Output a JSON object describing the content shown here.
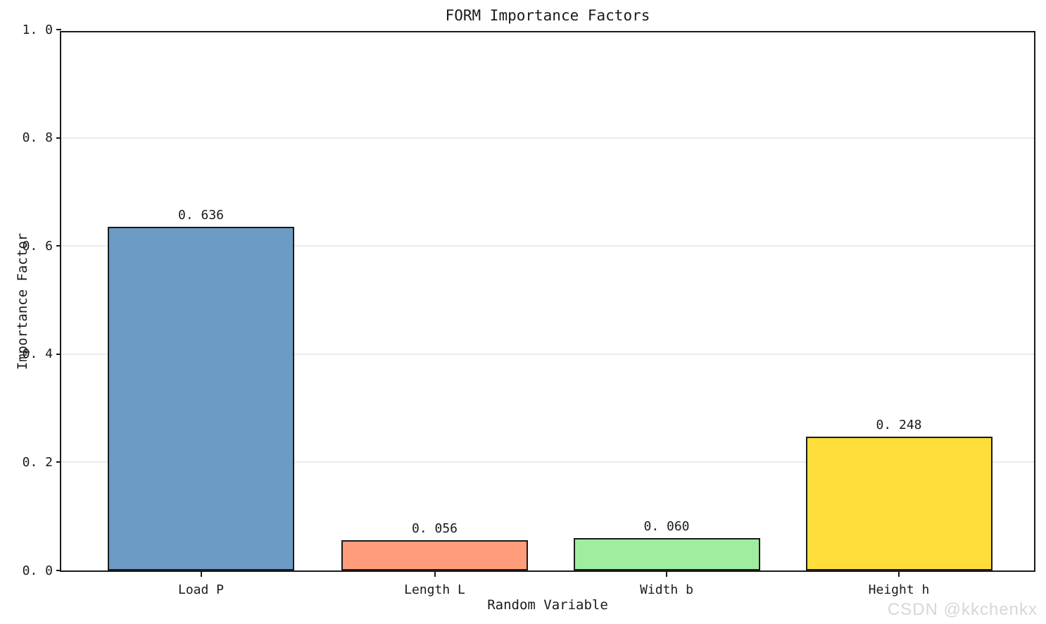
{
  "chart_data": {
    "type": "bar",
    "title": "FORM Importance Factors",
    "xlabel": "Random Variable",
    "ylabel": "Importance Factor",
    "categories": [
      "Load P",
      "Length L",
      "Width b",
      "Height h"
    ],
    "values": [
      0.636,
      0.056,
      0.06,
      0.248
    ],
    "value_labels": [
      "0. 636",
      "0. 056",
      "0. 060",
      "0. 248"
    ],
    "bar_colors": [
      "#6B9BC5",
      "#FF9C7C",
      "#A0EDA0",
      "#FFDD3B"
    ],
    "bar_edge_color": "#1a1a1a",
    "ylim": [
      0.0,
      1.0
    ],
    "yticks": [
      0.0,
      0.2,
      0.4,
      0.6,
      0.8,
      1.0
    ],
    "ytick_labels": [
      "0. 0",
      "0. 2",
      "0. 4",
      "0. 6",
      "0. 8",
      "1. 0"
    ],
    "grid": "horizontal light-gray lines at y ticks",
    "legend": "none",
    "background": "#ffffff"
  },
  "watermark": "CSDN @kkchenkx"
}
